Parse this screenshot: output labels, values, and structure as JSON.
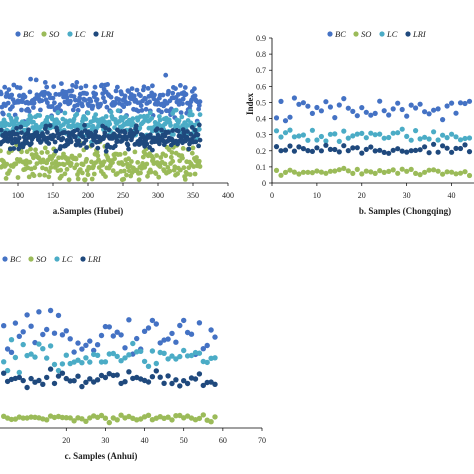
{
  "colors": {
    "BC": "#4472c4",
    "SO": "#9bbb59",
    "LC": "#4bacc6",
    "LRI": "#1f497d"
  },
  "chart_data": [
    {
      "id": "hubei",
      "type": "scatter",
      "xlabel": "a.Samples (Hubei)",
      "ylabel": "",
      "xlim": [
        0,
        400
      ],
      "ylim": [
        0,
        0.9
      ],
      "xticks": [
        "100",
        "150",
        "200",
        "250",
        "300",
        "350",
        "400"
      ],
      "yticks": [],
      "legend": [
        "BC",
        "SO",
        "LC",
        "LRI"
      ],
      "n": 360,
      "series": [
        {
          "name": "BC",
          "mean": 0.52,
          "spread": 0.09
        },
        {
          "name": "SO",
          "mean": 0.12,
          "spread": 0.09
        },
        {
          "name": "LC",
          "mean": 0.36,
          "spread": 0.07
        },
        {
          "name": "LRI",
          "mean": 0.28,
          "spread": 0.06
        }
      ]
    },
    {
      "id": "chongqing",
      "type": "scatter",
      "xlabel": "b. Samples (Chongqing)",
      "ylabel": "Index",
      "xlim": [
        0,
        45
      ],
      "ylim": [
        0,
        0.9
      ],
      "xticks": [
        "0",
        "10",
        "20",
        "30",
        "40"
      ],
      "yticks": [
        "0",
        "0.1",
        "0.2",
        "0.3",
        "0.4",
        "0.5",
        "0.6",
        "0.7",
        "0.8",
        "0.9"
      ],
      "legend": [
        "BC",
        "SO",
        "LC",
        "LRI"
      ],
      "n": 44,
      "series": [
        {
          "name": "BC",
          "mean": 0.45,
          "spread": 0.07
        },
        {
          "name": "SO",
          "mean": 0.07,
          "spread": 0.015
        },
        {
          "name": "LC",
          "mean": 0.3,
          "spread": 0.04
        },
        {
          "name": "LRI",
          "mean": 0.21,
          "spread": 0.025
        }
      ]
    },
    {
      "id": "anhui",
      "type": "scatter",
      "xlabel": "c. Samples (Anhui)",
      "ylabel": "",
      "xlim": [
        0,
        70
      ],
      "ylim": [
        0,
        0.9
      ],
      "xticks": [
        "20",
        "30",
        "40",
        "50",
        "60",
        "70"
      ],
      "yticks": [],
      "legend": [
        "BC",
        "SO",
        "LC",
        "LRI"
      ],
      "n": 58,
      "series": [
        {
          "name": "BC",
          "mean": 0.58,
          "spread": 0.1
        },
        {
          "name": "SO",
          "mean": 0.06,
          "spread": 0.02
        },
        {
          "name": "LC",
          "mean": 0.44,
          "spread": 0.07
        },
        {
          "name": "LRI",
          "mean": 0.3,
          "spread": 0.05
        }
      ]
    }
  ]
}
